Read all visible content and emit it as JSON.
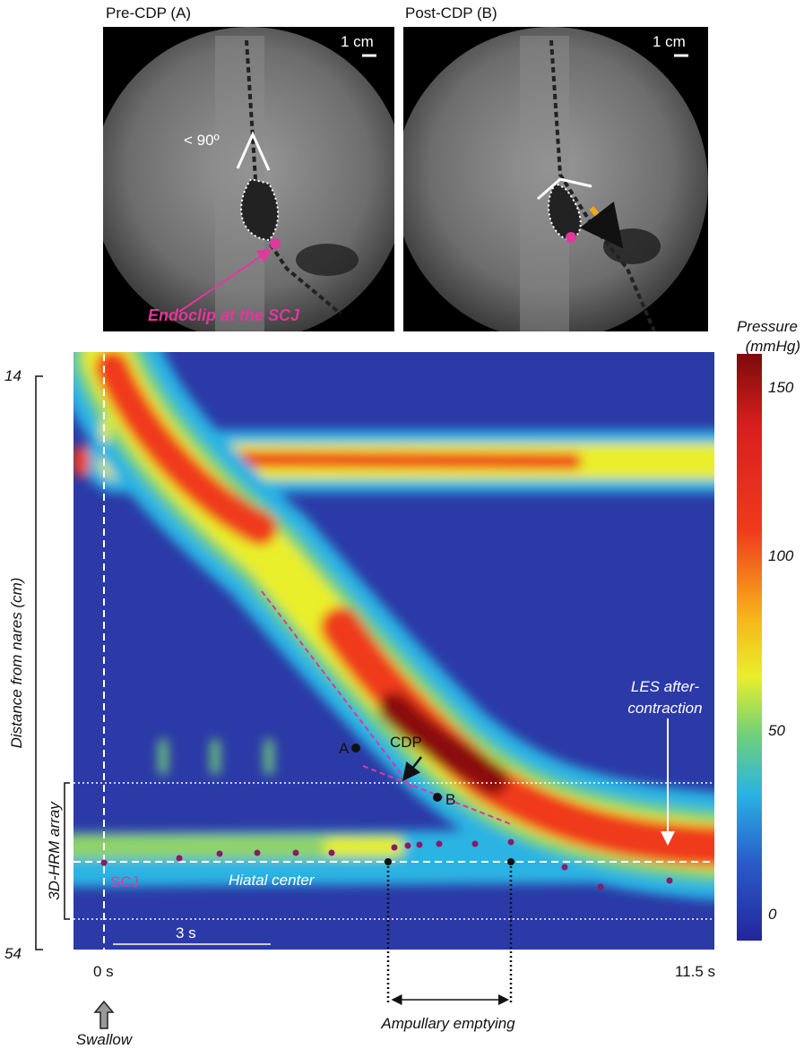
{
  "panels": [
    {
      "label": "Pre-CDP (A)",
      "scale": "1 cm",
      "angle": "< 90º",
      "annotation": "Endoclip at the SCJ"
    },
    {
      "label": "Post-CDP (B)",
      "scale": "1 cm"
    }
  ],
  "colorbar": {
    "title": [
      "Pressure",
      "(mmHg)"
    ],
    "ticks": [
      150,
      100,
      50,
      0
    ]
  },
  "topography": {
    "y_axis_label": "Distance from nares (cm)",
    "y_top": 14,
    "y_bottom": 54,
    "array_label": "3D-HRM array",
    "x_start": "0 s",
    "x_end": "11.5 s",
    "scale_bar": "3 s",
    "scj": "SCJ",
    "hiatal_center": "Hiatal center",
    "cdp": "CDP",
    "point_a": "A",
    "point_b": "B",
    "les": [
      "LES after-",
      "contraction"
    ],
    "ampullary": "Ampullary emptying",
    "swallow": "Swallow"
  }
}
